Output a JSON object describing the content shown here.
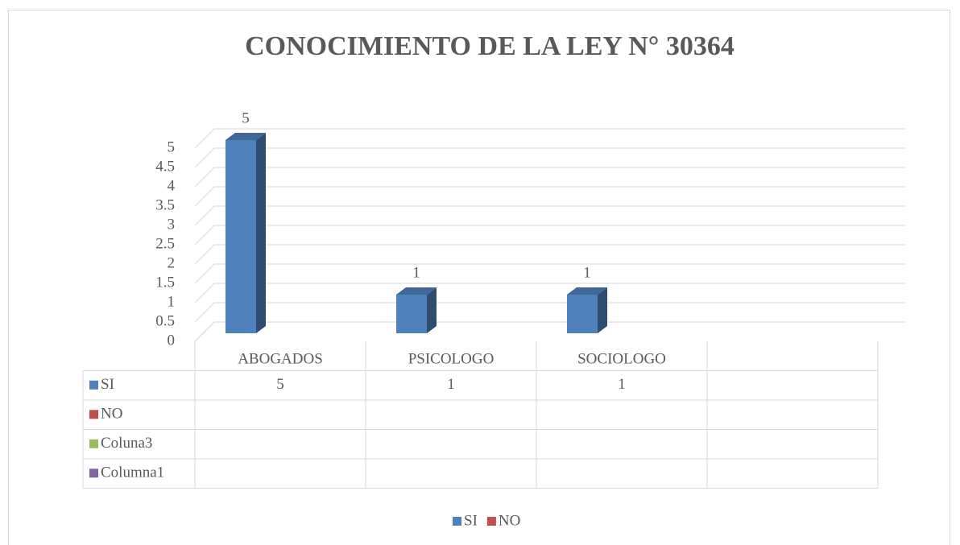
{
  "chart_data": {
    "type": "bar3d",
    "title": "CONOCIMIENTO DE LA LEY N° 30364",
    "categories": [
      "ABOGADOS",
      "PSICOLOGO",
      "SOCIOLOGO",
      null
    ],
    "series": [
      {
        "name": "SI",
        "color": "#4f81bd",
        "values": [
          5,
          1,
          1,
          null
        ]
      },
      {
        "name": "NO",
        "color": "#c0504d",
        "values": [
          null,
          null,
          null,
          null
        ]
      },
      {
        "name": "Coluna3",
        "color": "#9bbb59",
        "values": [
          null,
          null,
          null,
          null
        ]
      },
      {
        "name": "Columna1",
        "color": "#8064a2",
        "values": [
          null,
          null,
          null,
          null
        ]
      }
    ],
    "ylim": [
      0,
      5
    ],
    "yticks": [
      0,
      0.5,
      1,
      1.5,
      2,
      2.5,
      3,
      3.5,
      4,
      4.5,
      5
    ],
    "grid": true,
    "data_labels": true,
    "data_table": true,
    "legend": "bottom"
  }
}
